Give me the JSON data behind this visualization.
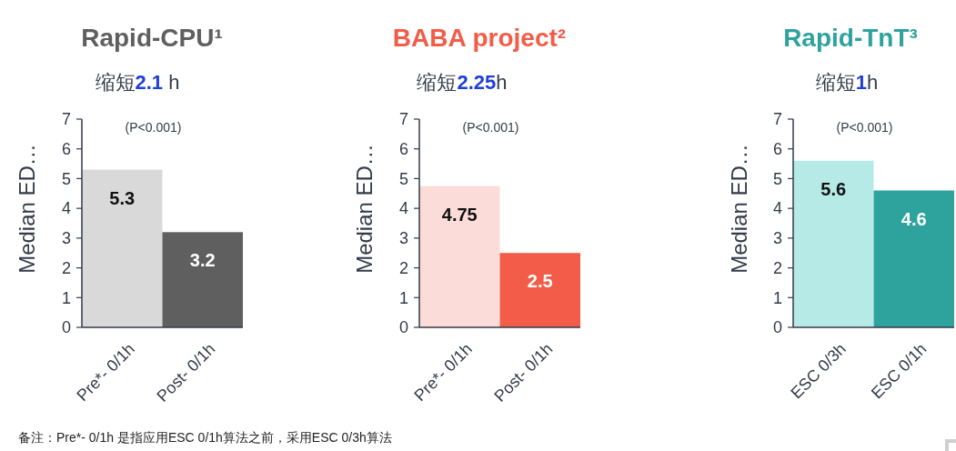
{
  "chart_data": [
    {
      "type": "bar",
      "title": "Rapid-CPU¹",
      "subtitle": "缩短2.1 h",
      "ylabel": "Median ED…",
      "categories": [
        "Pre*- 0/1h",
        "Post- 0/1h"
      ],
      "values": [
        5.3,
        3.2
      ],
      "colors": [
        "#d9d9d9",
        "#5f5f5f"
      ],
      "ylim": [
        0,
        7
      ],
      "yticks": [
        0,
        1,
        2,
        3,
        4,
        5,
        6,
        7
      ],
      "data_labels": true,
      "annotations": [
        "(P<0.001)",
        "备注：Pre*- 0/1h 是指应用ESC 0/1h算法之前，采用ESC 0/3h算法"
      ]
    },
    {
      "type": "bar",
      "title": "BABA project²",
      "subtitle": "缩短2.25h",
      "ylabel": "Median ED…",
      "categories": [
        "Pre*- 0/1h",
        "Post- 0/1h"
      ],
      "values": [
        4.75,
        2.5
      ],
      "colors": [
        "#fcdcd8",
        "#f25c48"
      ],
      "ylim": [
        0,
        7
      ],
      "yticks": [
        0,
        1,
        2,
        3,
        4,
        5,
        6,
        7
      ],
      "data_labels": true,
      "annotations": [
        "(P<0.001)"
      ]
    },
    {
      "type": "bar",
      "title": "Rapid-TnT³",
      "subtitle": "缩短1h",
      "ylabel": "Median ED…",
      "categories": [
        "ESC 0/3h",
        "ESC 0/1h"
      ],
      "values": [
        5.6,
        4.6
      ],
      "colors": [
        "#b6eae6",
        "#2ea39e"
      ],
      "ylim": [
        0,
        7
      ],
      "yticks": [
        0,
        1,
        2,
        3,
        4,
        5,
        6,
        7
      ],
      "data_labels": true,
      "annotations": [
        "(P<0.001)"
      ]
    }
  ]
}
